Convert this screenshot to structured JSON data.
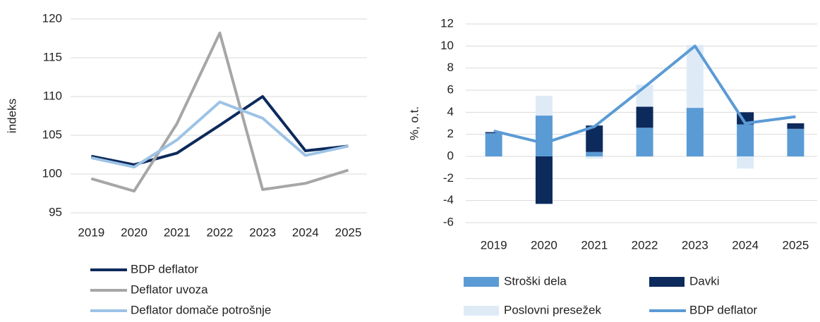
{
  "chart_data": [
    {
      "type": "line",
      "ylabel": "indeks",
      "categories": [
        "2019",
        "2020",
        "2021",
        "2022",
        "2023",
        "2024",
        "2025"
      ],
      "series": [
        {
          "name": "BDP deflator",
          "color": "#0d2a5c",
          "values": [
            102.3,
            101.2,
            102.7,
            106.3,
            110.0,
            103.0,
            103.6
          ]
        },
        {
          "name": "Deflator uvoza",
          "color": "#a6a6a6",
          "values": [
            99.4,
            97.8,
            106.5,
            118.2,
            98.0,
            98.8,
            100.5
          ]
        },
        {
          "name": "Deflator domače potrošnje",
          "color": "#9dc3e6",
          "values": [
            102.1,
            100.9,
            104.4,
            109.3,
            107.2,
            102.4,
            103.6
          ]
        }
      ],
      "ylim": [
        95,
        120
      ],
      "yticks": [
        95,
        100,
        105,
        110,
        115,
        120
      ],
      "grid": true
    },
    {
      "type": "bar",
      "stacked": true,
      "ylabel": "%, o.t.",
      "categories": [
        "2019",
        "2020",
        "2021",
        "2022",
        "2023",
        "2024",
        "2025"
      ],
      "series": [
        {
          "name": "Stroški dela",
          "color": "#5b9bd5",
          "values": [
            2.1,
            3.7,
            0.4,
            2.6,
            4.4,
            2.9,
            2.5
          ]
        },
        {
          "name": "Davki",
          "color": "#0d2a5c",
          "values": [
            0.1,
            -4.3,
            2.4,
            1.9,
            0,
            1.1,
            0.5
          ]
        },
        {
          "name": "Poslovni presežek",
          "color": "#deebf7",
          "values": [
            0,
            1.8,
            -0.2,
            2.0,
            5.7,
            -1.1,
            0
          ]
        },
        {
          "name": "BDP deflator",
          "type": "line",
          "color": "#5b9bd5",
          "values": [
            2.3,
            1.2,
            2.7,
            6.3,
            10.0,
            3.0,
            3.6
          ]
        }
      ],
      "ylim": [
        -6,
        12
      ],
      "yticks": [
        -6,
        -4,
        -2,
        0,
        2,
        4,
        6,
        8,
        10,
        12
      ],
      "grid": true
    }
  ]
}
